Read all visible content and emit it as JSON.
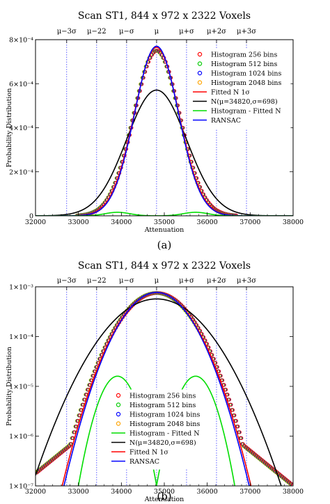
{
  "chart_data": [
    {
      "type": "line",
      "panel_label": "(a)",
      "title": "Scan ST1, 844 x 972 x 2322 Voxels",
      "xlabel": "Attenuation",
      "ylabel": "Probability Distribution",
      "xlim": [
        32000,
        38000
      ],
      "ylim": [
        0,
        0.0008
      ],
      "yscale": "linear",
      "x_ticks": [
        "32000",
        "33000",
        "34000",
        "35000",
        "36000",
        "37000",
        "38000"
      ],
      "x_tick_values": [
        32000,
        33000,
        34000,
        35000,
        36000,
        37000,
        38000
      ],
      "y_ticks": [
        "0",
        "2×10⁻⁴",
        "4×10⁻⁴",
        "6×10⁻⁴",
        "8×10⁻⁴"
      ],
      "y_tick_values": [
        0,
        0.0002,
        0.0004,
        0.0006,
        0.0008
      ],
      "sigma_labels": [
        "μ−3σ",
        "μ−22",
        "μ−σ",
        "μ",
        "μ+σ",
        "μ+2σ",
        "μ+3σ"
      ],
      "sigma_positions": [
        32726,
        33424,
        34122,
        34820,
        35518,
        36216,
        36914
      ],
      "legend_position": "top-right",
      "legend": [
        {
          "label": "Histogram 256 bins",
          "color": "#ff0000",
          "kind": "circle"
        },
        {
          "label": "Histogram 512 bins",
          "color": "#00cc00",
          "kind": "circle"
        },
        {
          "label": "Histogram 1024 bins",
          "color": "#0000ff",
          "kind": "circle"
        },
        {
          "label": "Histogram 2048 bins",
          "color": "#ffa500",
          "kind": "circle"
        },
        {
          "label": "Fitted N 1σ",
          "color": "#ff0000",
          "kind": "line"
        },
        {
          "label": "N(μ=34820,σ=698)",
          "color": "#000000",
          "kind": "line"
        },
        {
          "label": "Histogram - Fitted N",
          "color": "#00dd00",
          "kind": "line"
        },
        {
          "label": "RANSAC",
          "color": "#0000ff",
          "kind": "line"
        }
      ],
      "series": [
        {
          "label": "N(μ=34820,σ=698)",
          "color": "#000000",
          "model": "gaussian",
          "mu": 34820,
          "sigma": 698,
          "peak": 0.000571
        },
        {
          "label": "Fitted N 1σ",
          "color": "#ff0000",
          "model": "gaussian",
          "mu": 34820,
          "sigma": 520,
          "peak": 0.000765
        },
        {
          "label": "RANSAC",
          "color": "#0000ff",
          "model": "gaussian",
          "mu": 34820,
          "sigma": 510,
          "peak": 0.00077
        },
        {
          "label": "Histogram - Fitted N",
          "color": "#00dd00",
          "model": "residual",
          "mu": 34820,
          "sigma": 520,
          "peak": 0.000765,
          "bump_height": 1.6e-05
        },
        {
          "label": "Histogram 256 bins",
          "color": "#ff0000",
          "model": "histogram",
          "mu": 34820,
          "sigma": 535,
          "peak": 0.00075
        }
      ]
    },
    {
      "type": "line",
      "panel_label": "(b)",
      "title": "Scan ST1, 844 x 972 x 2322 Voxels",
      "xlabel": "Attenuation",
      "ylabel": "Probability Distribution",
      "xlim": [
        32000,
        38000
      ],
      "ylim": [
        1e-07,
        0.001
      ],
      "yscale": "log",
      "x_ticks": [
        "32000",
        "33000",
        "34000",
        "35000",
        "36000",
        "37000",
        "38000"
      ],
      "x_tick_values": [
        32000,
        33000,
        34000,
        35000,
        36000,
        37000,
        38000
      ],
      "y_ticks": [
        "1×10⁻⁷",
        "1×10⁻⁶",
        "1×10⁻⁵",
        "1×10⁻⁴",
        "1×10⁻³"
      ],
      "y_tick_values": [
        1e-07,
        1e-06,
        1e-05,
        0.0001,
        0.001
      ],
      "sigma_labels": [
        "μ−3σ",
        "μ−22",
        "μ−σ",
        "μ",
        "μ+σ",
        "μ+2σ",
        "μ+3σ"
      ],
      "sigma_positions": [
        32726,
        33424,
        34122,
        34820,
        35518,
        36216,
        36914
      ],
      "legend_position": "bottom-center",
      "legend": [
        {
          "label": "Histogram 256 bins",
          "color": "#ff0000",
          "kind": "circle"
        },
        {
          "label": "Histogram 512 bins",
          "color": "#00cc00",
          "kind": "circle"
        },
        {
          "label": "Histogram 1024 bins",
          "color": "#0000ff",
          "kind": "circle"
        },
        {
          "label": "Histogram 2048 bins",
          "color": "#ffa500",
          "kind": "circle"
        },
        {
          "label": "Histogram - Fitted N",
          "color": "#00dd00",
          "kind": "line"
        },
        {
          "label": "N(μ=34820,σ=698)",
          "color": "#000000",
          "kind": "line"
        },
        {
          "label": "Fitted N 1σ",
          "color": "#ff0000",
          "kind": "line"
        },
        {
          "label": "RANSAC",
          "color": "#0000ff",
          "kind": "line"
        }
      ],
      "series": [
        {
          "label": "N(μ=34820,σ=698)",
          "color": "#000000",
          "model": "gaussian",
          "mu": 34820,
          "sigma": 698,
          "peak": 0.000571
        },
        {
          "label": "Fitted N 1σ",
          "color": "#ff0000",
          "model": "gaussian",
          "mu": 34820,
          "sigma": 520,
          "peak": 0.000765
        },
        {
          "label": "RANSAC",
          "color": "#0000ff",
          "model": "gaussian",
          "mu": 34820,
          "sigma": 510,
          "peak": 0.00077
        },
        {
          "label": "Histogram - Fitted N",
          "color": "#00dd00",
          "model": "residual",
          "mu": 34820,
          "sigma": 520,
          "peak": 0.000765,
          "bump_height": 1.6e-05
        },
        {
          "label": "Histogram 256 bins",
          "color": "#ff0000",
          "model": "histogram",
          "mu": 34820,
          "sigma": 535,
          "peak": 0.00075
        }
      ]
    }
  ]
}
